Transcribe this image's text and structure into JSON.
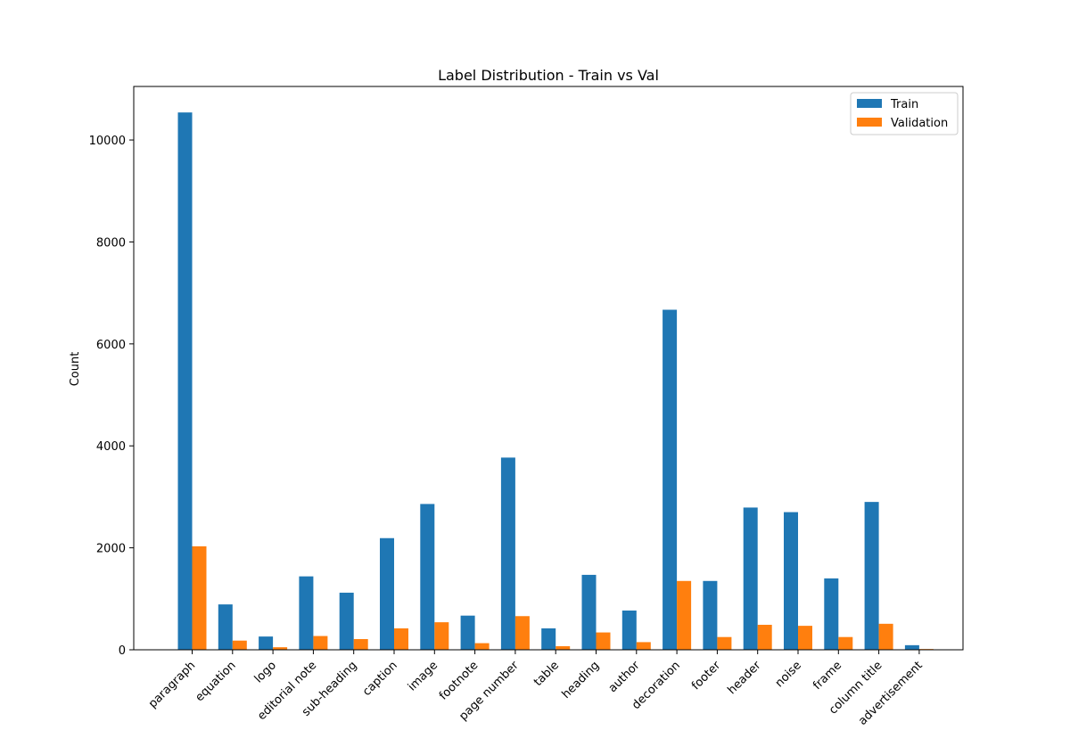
{
  "chart_data": {
    "type": "bar",
    "title": "Label Distribution - Train vs Val",
    "xlabel": "",
    "ylabel": "Count",
    "ylim": [
      0,
      11050
    ],
    "yticks": [
      0,
      2000,
      4000,
      6000,
      8000,
      10000
    ],
    "grid": false,
    "legend_position": "top-right",
    "categories": [
      "paragraph",
      "equation",
      "logo",
      "editorial note",
      "sub-heading",
      "caption",
      "image",
      "footnote",
      "page number",
      "table",
      "heading",
      "author",
      "decoration",
      "footer",
      "header",
      "noise",
      "frame",
      "column title",
      "advertisement"
    ],
    "series": [
      {
        "name": "Train",
        "color": "#1f77b4",
        "values": [
          10540,
          890,
          260,
          1440,
          1120,
          2190,
          2860,
          670,
          3770,
          420,
          1470,
          770,
          6670,
          1350,
          2790,
          2700,
          1400,
          2900,
          90
        ]
      },
      {
        "name": "Validation",
        "color": "#ff7f0e",
        "values": [
          2030,
          180,
          50,
          270,
          210,
          420,
          540,
          130,
          660,
          70,
          340,
          150,
          1350,
          250,
          490,
          470,
          250,
          510,
          15
        ]
      }
    ]
  }
}
